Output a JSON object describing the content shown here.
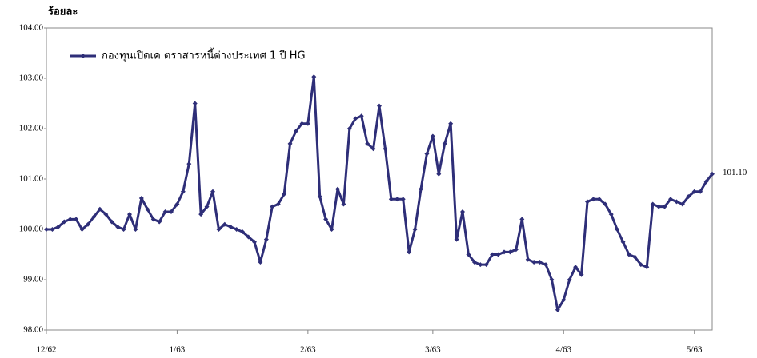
{
  "chart_data": {
    "type": "line",
    "y_label": "ร้อยละ",
    "categories": [
      "12/62",
      null,
      null,
      null,
      null,
      null,
      null,
      null,
      null,
      null,
      null,
      null,
      null,
      null,
      null,
      null,
      null,
      null,
      null,
      null,
      null,
      null,
      "1/63",
      null,
      null,
      null,
      null,
      null,
      null,
      null,
      null,
      null,
      null,
      null,
      null,
      null,
      null,
      null,
      null,
      null,
      null,
      null,
      null,
      null,
      "2/63",
      null,
      null,
      null,
      null,
      null,
      null,
      null,
      null,
      null,
      null,
      null,
      null,
      null,
      null,
      null,
      null,
      null,
      null,
      null,
      null,
      "3/63",
      null,
      null,
      null,
      null,
      null,
      null,
      null,
      null,
      null,
      null,
      null,
      null,
      null,
      null,
      null,
      null,
      null,
      null,
      null,
      null,
      null,
      "4/63",
      null,
      null,
      null,
      null,
      null,
      null,
      null,
      null,
      null,
      null,
      null,
      null,
      null,
      null,
      null,
      null,
      null,
      null,
      null,
      null,
      null,
      "5/63",
      null,
      null,
      null
    ],
    "series": [
      {
        "name": "กองทุนเปิดเค ตราสารหนี้ต่างประเทศ 1 ปี HG",
        "color": "#2e2e78",
        "values": [
          100.0,
          100.0,
          100.05,
          100.15,
          100.2,
          100.2,
          100.0,
          100.1,
          100.25,
          100.4,
          100.3,
          100.15,
          100.05,
          100.0,
          100.3,
          100.0,
          100.62,
          100.4,
          100.2,
          100.15,
          100.35,
          100.35,
          100.5,
          100.75,
          101.3,
          102.5,
          100.3,
          100.45,
          100.75,
          100.0,
          100.1,
          100.05,
          100.0,
          99.95,
          99.85,
          99.75,
          99.35,
          99.8,
          100.45,
          100.5,
          100.7,
          101.7,
          101.95,
          102.1,
          102.1,
          103.03,
          100.65,
          100.2,
          100.0,
          100.8,
          100.5,
          102.0,
          102.2,
          102.25,
          101.7,
          101.6,
          102.45,
          101.6,
          100.6,
          100.6,
          100.6,
          99.55,
          100.0,
          100.8,
          101.5,
          101.85,
          101.1,
          101.7,
          102.1,
          99.8,
          100.35,
          99.5,
          99.35,
          99.3,
          99.3,
          99.5,
          99.5,
          99.55,
          99.55,
          99.6,
          100.2,
          99.4,
          99.35,
          99.35,
          99.3,
          99.0,
          98.4,
          98.6,
          99.0,
          99.25,
          99.1,
          100.55,
          100.6,
          100.6,
          100.5,
          100.3,
          100.0,
          99.75,
          99.5,
          99.45,
          99.3,
          99.25,
          100.5,
          100.45,
          100.45,
          100.6,
          100.55,
          100.5,
          100.65,
          100.75,
          100.75,
          100.95,
          101.1
        ],
        "value_labels": [
          null,
          null,
          null,
          null,
          null,
          null,
          null,
          null,
          null,
          null,
          null,
          null,
          null,
          null,
          null,
          null,
          null,
          null,
          null,
          null,
          null,
          null,
          null,
          null,
          null,
          null,
          null,
          null,
          null,
          null,
          null,
          null,
          null,
          null,
          null,
          null,
          null,
          null,
          null,
          null,
          null,
          null,
          null,
          null,
          null,
          null,
          null,
          null,
          null,
          null,
          null,
          null,
          null,
          null,
          null,
          null,
          null,
          null,
          null,
          null,
          null,
          null,
          null,
          null,
          null,
          null,
          null,
          null,
          null,
          null,
          null,
          null,
          null,
          null,
          null,
          null,
          null,
          null,
          null,
          null,
          null,
          null,
          null,
          null,
          null,
          null,
          null,
          null,
          null,
          null,
          null,
          null,
          null,
          null,
          null,
          null,
          null,
          null,
          null,
          null,
          null,
          null,
          null,
          null,
          null,
          null,
          null,
          null,
          null,
          null,
          null,
          null,
          "101.10"
        ]
      }
    ],
    "ylim": [
      98,
      104
    ],
    "yticks": [
      {
        "value": 98,
        "label": "98.00"
      },
      {
        "value": 99,
        "label": "99.00"
      },
      {
        "value": 100,
        "label": "100.00"
      },
      {
        "value": 101,
        "label": "101.00"
      },
      {
        "value": 102,
        "label": "102.00"
      },
      {
        "value": 103,
        "label": "103.00"
      },
      {
        "value": 104,
        "label": "104.00"
      }
    ],
    "grid": false,
    "legend": "top-left"
  }
}
